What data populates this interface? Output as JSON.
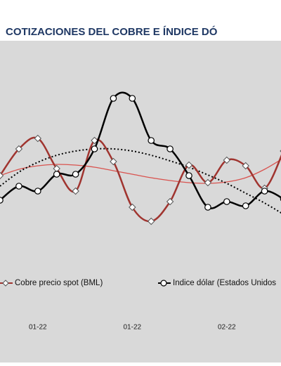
{
  "chart_data": {
    "type": "line",
    "title": "COTIZACIONES DEL COBRE E ÍNDICE DÓ",
    "categories": [
      null,
      null,
      "01-22",
      null,
      null,
      null,
      null,
      "01-22",
      null,
      null,
      null,
      null,
      "02-22",
      null,
      null,
      null
    ],
    "ylim": [
      0,
      110
    ],
    "series": [
      {
        "name": "Cobre precio spot (BML)",
        "color": "#a0342f",
        "marker": "diamond",
        "values": [
          47.5,
          66.5,
          74,
          52.5,
          36.5,
          72.5,
          57.5,
          25,
          15,
          29,
          55,
          42.5,
          58.5,
          54.5,
          38.5,
          65
        ]
      },
      {
        "name": "Indice dólar (Estados Unidos",
        "color": "#000000",
        "marker": "circle",
        "values": [
          30,
          40,
          36.5,
          48.5,
          48.5,
          66.5,
          102.5,
          102.5,
          72.5,
          66.5,
          47.5,
          25,
          29,
          26,
          36.5,
          31
        ]
      },
      {
        "color": "#d9534f",
        "dash": "solid",
        "values": [
          47.5,
          52,
          54.5,
          55.5,
          55,
          53.5,
          51,
          48.5,
          46,
          44,
          42.5,
          42,
          43,
          46,
          52,
          60
        ]
      },
      {
        "color": "#000000",
        "dash": "dotted",
        "values": [
          40,
          50,
          57,
          62,
          65,
          66.5,
          66.5,
          65,
          62,
          58,
          53.5,
          48,
          42,
          35,
          28,
          20
        ]
      }
    ]
  }
}
